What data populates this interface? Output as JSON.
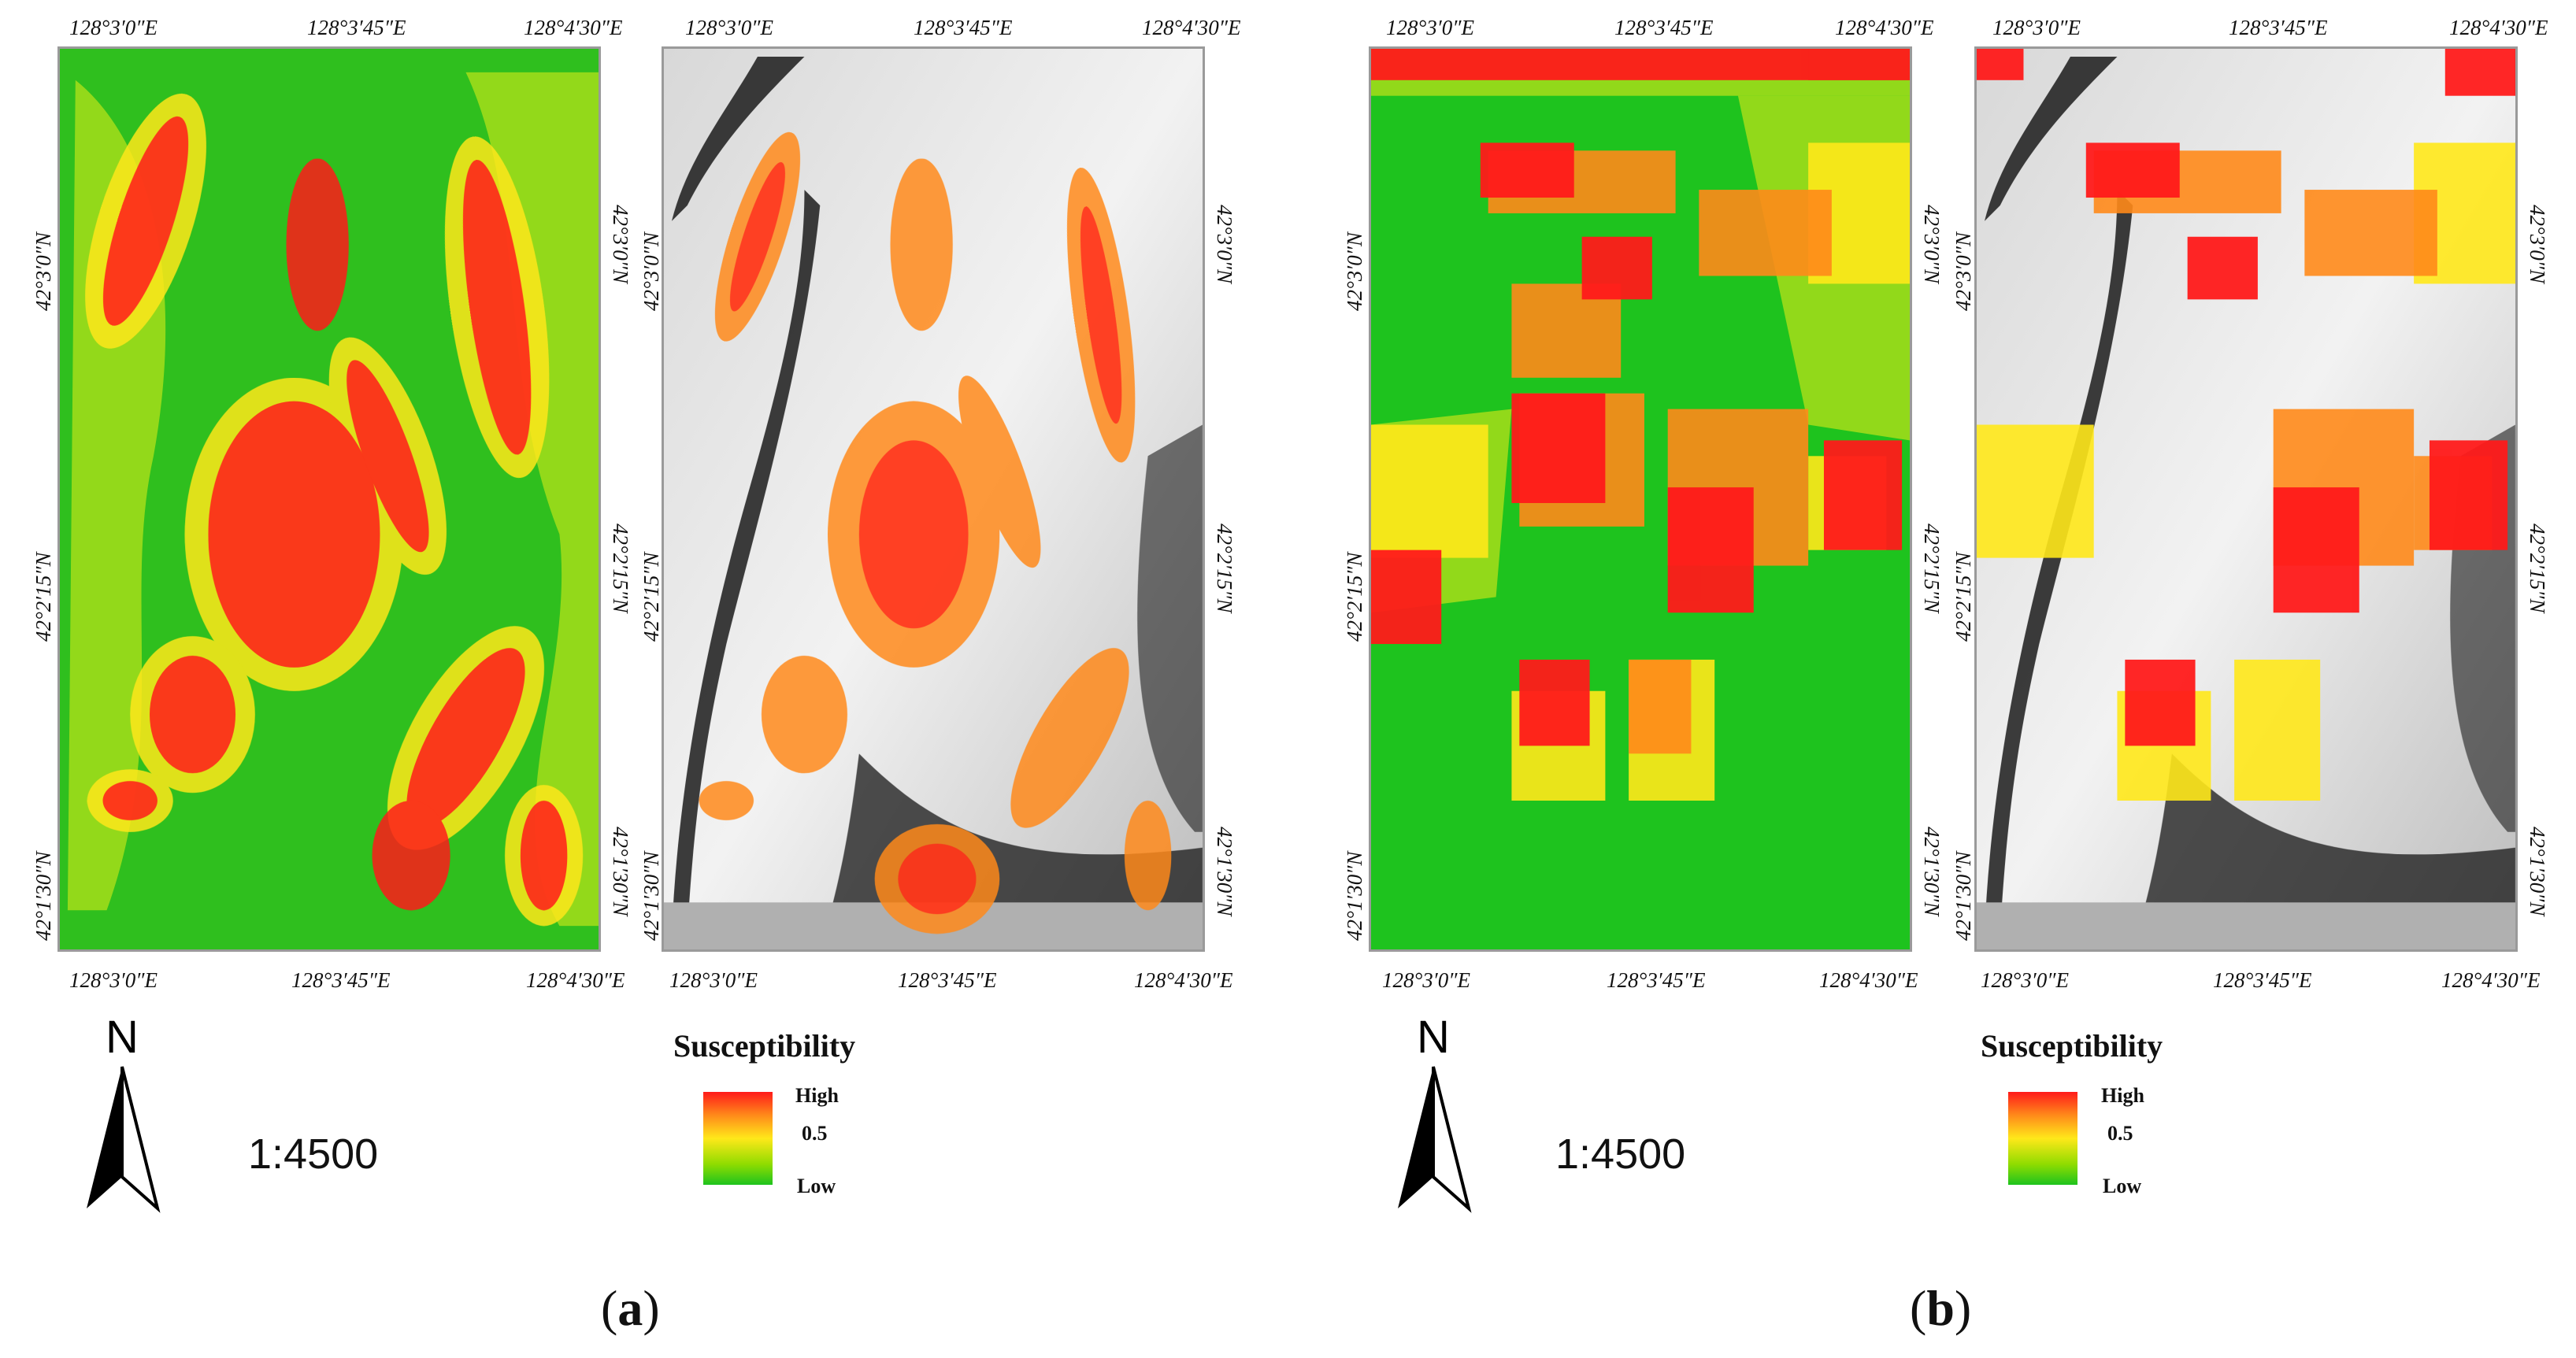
{
  "panels": [
    {
      "label_open": "(",
      "label_letter": "a",
      "label_close": ")",
      "scale": "1:4500",
      "legend_title": "Susceptibility",
      "legend_high": "High",
      "legend_mid": "0.5",
      "legend_low": "Low"
    },
    {
      "label_open": "(",
      "label_letter": "b",
      "label_close": ")",
      "scale": "1:4500",
      "legend_title": "Susceptibility",
      "legend_high": "High",
      "legend_mid": "0.5",
      "legend_low": "Low"
    }
  ],
  "coords": {
    "lon_west": "128°3′0″E",
    "lon_mid": "128°3′45″E",
    "lon_east": "128°4′30″E",
    "lat_north": "42°3′0″N",
    "lat_mid": "42°2′15″N",
    "lat_south": "42°1′30″N"
  },
  "north_label": "N",
  "colors": {
    "high": "#ff1a1a",
    "medium_high": "#ff8a1a",
    "medium": "#ffe81a",
    "low": "#1ec31e",
    "hillshade_dark": "#1a1a1a",
    "hillshade_light": "#e6e6e6"
  }
}
